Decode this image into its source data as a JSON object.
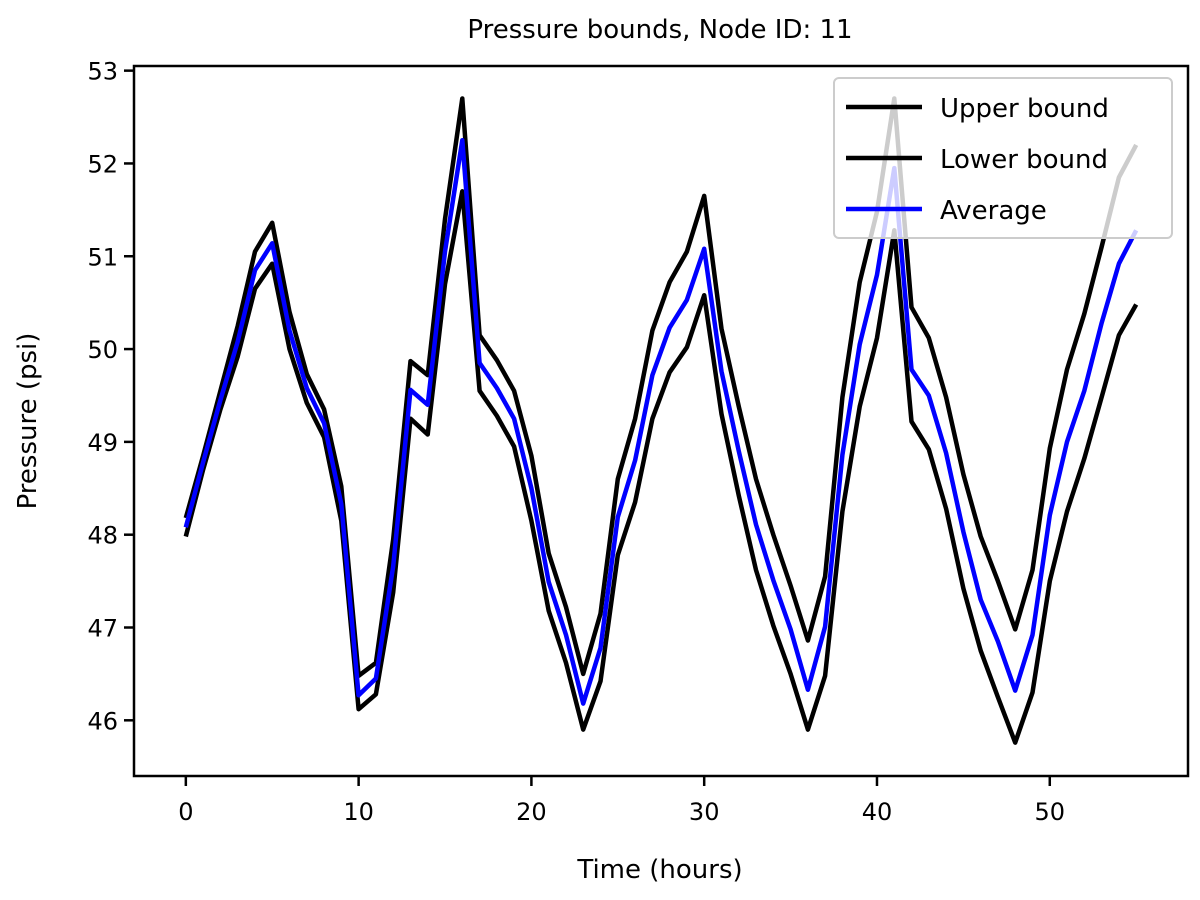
{
  "chart_data": {
    "type": "line",
    "title": "Pressure bounds, Node ID: 11",
    "xlabel": "Time (hours)",
    "ylabel": "Pressure (psi)",
    "xlim": [
      -3,
      58
    ],
    "ylim": [
      45.4,
      53.05
    ],
    "xticks": [
      0,
      10,
      20,
      30,
      40,
      50
    ],
    "yticks": [
      46,
      47,
      48,
      49,
      50,
      51,
      52,
      53
    ],
    "grid": false,
    "legend_position": "top-right",
    "x": [
      0,
      1,
      2,
      3,
      4,
      5,
      6,
      7,
      8,
      9,
      10,
      11,
      12,
      13,
      14,
      15,
      16,
      17,
      18,
      19,
      20,
      21,
      22,
      23,
      24,
      25,
      26,
      27,
      28,
      29,
      30,
      31,
      32,
      33,
      34,
      35,
      36,
      37,
      38,
      39,
      40,
      41,
      42,
      43,
      44,
      45,
      46,
      47,
      48,
      49,
      50,
      51,
      52,
      53,
      54,
      55
    ],
    "series": [
      {
        "name": "Upper bound",
        "color": "#000000",
        "values": [
          48.18,
          48.85,
          49.55,
          50.25,
          51.05,
          51.36,
          50.4,
          49.73,
          49.35,
          48.52,
          46.48,
          46.62,
          47.95,
          49.87,
          49.72,
          51.4,
          52.7,
          50.15,
          49.88,
          49.55,
          48.85,
          47.8,
          47.22,
          46.5,
          47.15,
          48.6,
          49.25,
          50.2,
          50.72,
          51.05,
          51.65,
          50.22,
          49.38,
          48.6,
          48.0,
          47.45,
          46.86,
          47.55,
          49.48,
          50.72,
          51.48,
          52.7,
          50.45,
          50.12,
          49.48,
          48.65,
          47.98,
          47.5,
          46.98,
          47.62,
          48.93,
          49.78,
          50.38,
          51.1,
          51.85,
          52.2
        ]
      },
      {
        "name": "Lower bound",
        "color": "#000000",
        "values": [
          47.98,
          48.7,
          49.35,
          49.92,
          50.65,
          50.92,
          50.0,
          49.42,
          49.05,
          48.15,
          46.12,
          46.28,
          47.38,
          49.25,
          49.08,
          50.7,
          51.7,
          49.55,
          49.28,
          48.95,
          48.15,
          47.18,
          46.62,
          45.9,
          46.42,
          47.78,
          48.35,
          49.25,
          49.75,
          50.02,
          50.58,
          49.3,
          48.42,
          47.62,
          47.02,
          46.5,
          45.9,
          46.48,
          48.25,
          49.38,
          50.12,
          51.28,
          49.22,
          48.92,
          48.28,
          47.42,
          46.75,
          46.25,
          45.76,
          46.3,
          47.5,
          48.25,
          48.82,
          49.48,
          50.15,
          50.48
        ]
      },
      {
        "name": "Average",
        "color": "#0000ff",
        "values": [
          48.08,
          48.78,
          49.45,
          50.08,
          50.85,
          51.14,
          50.2,
          49.58,
          49.2,
          48.33,
          46.27,
          46.45,
          47.66,
          49.56,
          49.4,
          51.05,
          52.25,
          49.85,
          49.58,
          49.25,
          48.5,
          47.49,
          46.92,
          46.18,
          46.78,
          48.19,
          48.8,
          49.72,
          50.23,
          50.53,
          51.08,
          49.76,
          48.9,
          48.11,
          47.51,
          46.98,
          46.33,
          47.01,
          48.86,
          50.05,
          50.8,
          51.95,
          49.78,
          49.5,
          48.88,
          48.03,
          47.3,
          46.85,
          46.32,
          46.92,
          48.21,
          49.0,
          49.55,
          50.28,
          50.92,
          51.28
        ]
      }
    ]
  }
}
